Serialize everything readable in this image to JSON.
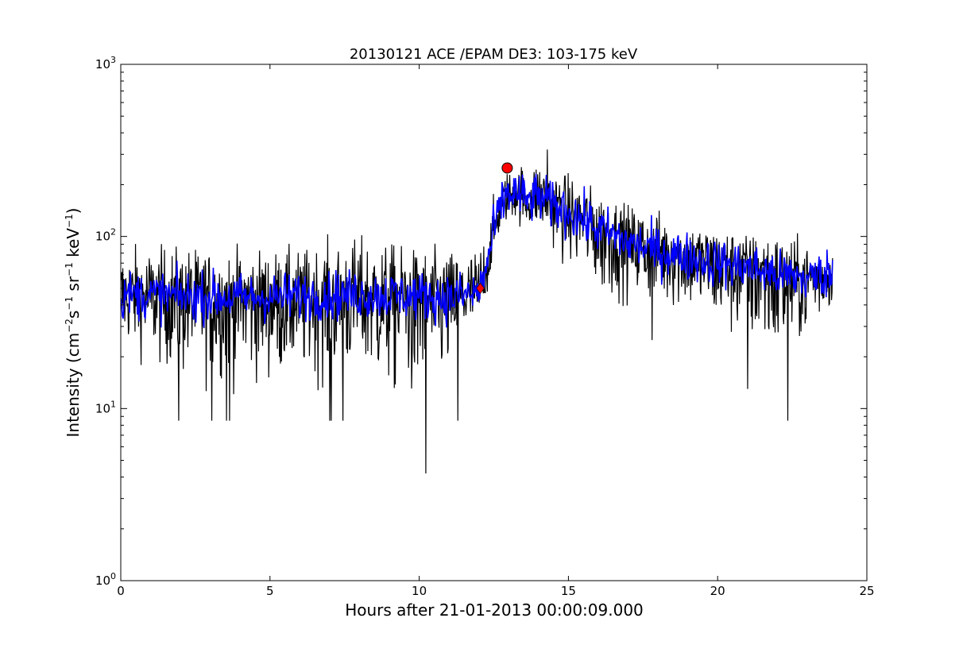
{
  "chart_data": {
    "type": "line",
    "title": "20130121 ACE /EPAM DE3: 103-175 keV",
    "xlabel": "Hours after 21-01-2013 00:00:09.000",
    "ylabel": {
      "prefix": "Intensity (cm",
      "sup1": "−2",
      "p2": "s",
      "sup2": "−1",
      "p3": " sr",
      "sup3": "−1",
      "p4": " keV",
      "sup4": "−1",
      "suffix": ")"
    },
    "xlim": [
      0,
      25
    ],
    "ylim": [
      1,
      1000
    ],
    "yscale": "log",
    "grid": false,
    "xticks": [
      0,
      5,
      10,
      15,
      20,
      25
    ],
    "xtick_labels": [
      "0",
      "5",
      "10",
      "15",
      "20",
      "25"
    ],
    "yticks": [
      1,
      10,
      100,
      1000
    ],
    "ytick_labels": [
      {
        "base": "10",
        "exp": "0"
      },
      {
        "base": "10",
        "exp": "1"
      },
      {
        "base": "10",
        "exp": "2"
      },
      {
        "base": "10",
        "exp": "3"
      }
    ],
    "series": [
      {
        "style": "raw",
        "color": "#000000",
        "x_range": [
          0,
          23.85
        ],
        "envelope": {
          "x": [
            0,
            2,
            4,
            6,
            8,
            10,
            11,
            12.0,
            12.3,
            12.6,
            12.9,
            13.2,
            13.6,
            14.0,
            14.5,
            15.0,
            15.5,
            16.0,
            17.0,
            18.0,
            19.0,
            20.0,
            21.0,
            22.0,
            23.0,
            23.85
          ],
          "median": [
            45,
            45,
            44,
            45,
            46,
            45,
            44,
            46,
            65,
            120,
            170,
            180,
            160,
            170,
            155,
            140,
            130,
            115,
            95,
            85,
            78,
            72,
            68,
            62,
            58,
            60
          ],
          "min": [
            17,
            8.5,
            8.5,
            8.5,
            8.5,
            4.2,
            8.5,
            25,
            40,
            80,
            100,
            100,
            90,
            90,
            60,
            45,
            40,
            25,
            30,
            25,
            25,
            17,
            13,
            8.5,
            17,
            30
          ],
          "max": [
            100,
            100,
            95,
            95,
            115,
            95,
            95,
            100,
            150,
            200,
            260,
            280,
            300,
            320,
            280,
            250,
            230,
            200,
            170,
            155,
            135,
            125,
            115,
            115,
            100,
            90
          ]
        },
        "spikes": [
          {
            "x": 1.95,
            "y": 8.5
          },
          {
            "x": 3.05,
            "y": 8.5
          },
          {
            "x": 3.55,
            "y": 8.5
          },
          {
            "x": 3.65,
            "y": 8.5
          },
          {
            "x": 7.0,
            "y": 8.5
          },
          {
            "x": 7.05,
            "y": 8.5
          },
          {
            "x": 7.0,
            "y": 8.5
          },
          {
            "x": 7.45,
            "y": 8.5
          },
          {
            "x": 10.22,
            "y": 4.2
          },
          {
            "x": 11.3,
            "y": 8.5
          },
          {
            "x": 14.3,
            "y": 320
          },
          {
            "x": 17.8,
            "y": 25
          },
          {
            "x": 21.0,
            "y": 13
          },
          {
            "x": 22.35,
            "y": 8.5
          }
        ]
      },
      {
        "style": "smoothed",
        "color": "#0000ff",
        "x_range": [
          0,
          23.85
        ],
        "x": [
          0,
          2,
          4,
          6,
          8,
          10,
          11,
          12.0,
          12.3,
          12.6,
          12.9,
          13.2,
          13.6,
          14.0,
          14.5,
          15.0,
          15.5,
          16.0,
          17.0,
          18.0,
          19.0,
          20.0,
          21.0,
          22.0,
          23.0,
          23.85
        ],
        "y": [
          46,
          45,
          44,
          45,
          46,
          45,
          44,
          47,
          70,
          125,
          175,
          180,
          160,
          170,
          150,
          140,
          125,
          110,
          92,
          82,
          76,
          70,
          66,
          60,
          57,
          62
        ]
      }
    ],
    "markers": [
      {
        "name": "onset",
        "shape": "diamond",
        "x": 12.05,
        "y": 50,
        "color": "#ff0000"
      },
      {
        "name": "peak",
        "shape": "circle",
        "x": 12.95,
        "y": 250,
        "color": "#ff0000"
      }
    ]
  }
}
